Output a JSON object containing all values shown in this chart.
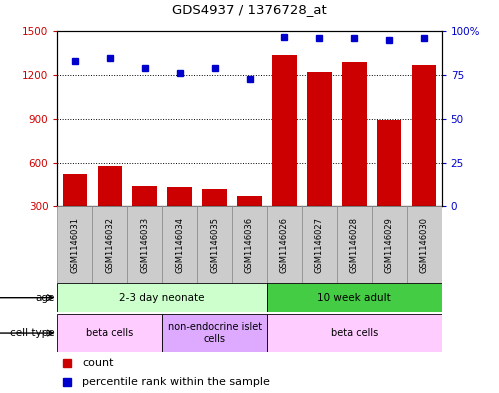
{
  "title": "GDS4937 / 1376728_at",
  "samples": [
    "GSM1146031",
    "GSM1146032",
    "GSM1146033",
    "GSM1146034",
    "GSM1146035",
    "GSM1146036",
    "GSM1146026",
    "GSM1146027",
    "GSM1146028",
    "GSM1146029",
    "GSM1146030"
  ],
  "counts": [
    520,
    580,
    440,
    430,
    420,
    370,
    1340,
    1220,
    1290,
    890,
    1270
  ],
  "percentiles": [
    83,
    85,
    79,
    76,
    79,
    73,
    97,
    96,
    96,
    95,
    96
  ],
  "ylim_left": [
    300,
    1500
  ],
  "ylim_right": [
    0,
    100
  ],
  "yticks_left": [
    300,
    600,
    900,
    1200,
    1500
  ],
  "yticks_right": [
    0,
    25,
    50,
    75,
    100
  ],
  "bar_color": "#cc0000",
  "dot_color": "#0000cc",
  "age_groups": [
    {
      "label": "2-3 day neonate",
      "start": 0,
      "end": 6,
      "color": "#ccffcc"
    },
    {
      "label": "10 week adult",
      "start": 6,
      "end": 11,
      "color": "#44cc44"
    }
  ],
  "cell_type_groups": [
    {
      "label": "beta cells",
      "start": 0,
      "end": 3,
      "color": "#ffccff"
    },
    {
      "label": "non-endocrine islet\ncells",
      "start": 3,
      "end": 6,
      "color": "#ddaaff"
    },
    {
      "label": "beta cells",
      "start": 6,
      "end": 11,
      "color": "#ffccff"
    }
  ],
  "age_label": "age",
  "cell_type_label": "cell type",
  "legend_count": "count",
  "legend_pct": "percentile rank within the sample",
  "background_color": "#ffffff",
  "plot_bg_color": "#ffffff",
  "label_area_color": "#cccccc"
}
